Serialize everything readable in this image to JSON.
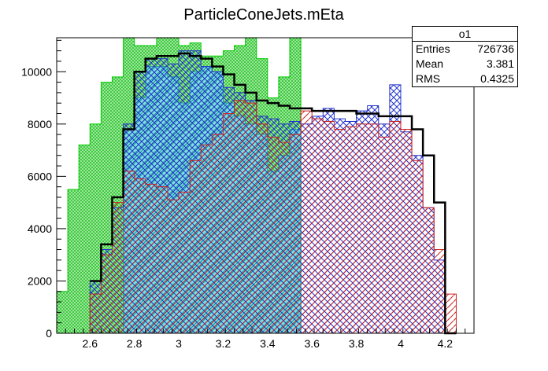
{
  "chart_data": {
    "type": "histogram",
    "title": "ParticleConeJets.mEta",
    "xlabel": "",
    "ylabel": "",
    "xlim": [
      2.45,
      4.33
    ],
    "ylim": [
      0,
      11300
    ],
    "x_ticks": [
      "2.6",
      "2.8",
      "3",
      "3.2",
      "3.4",
      "3.6",
      "3.8",
      "4",
      "4.2"
    ],
    "y_ticks": [
      "0",
      "2000",
      "4000",
      "6000",
      "8000",
      "10000"
    ],
    "grid": false,
    "legend": "none",
    "stats_box": {
      "name": "o1",
      "rows": [
        {
          "label": "Entries",
          "value": "726736"
        },
        {
          "label": "Mean",
          "value": "3.381"
        },
        {
          "label": "RMS",
          "value": "0.4325"
        }
      ]
    },
    "series": [
      {
        "style": "green fill",
        "color": "#00cc00",
        "x": [
          2.45,
          2.5,
          2.55,
          2.6,
          2.65,
          2.7,
          2.75,
          2.8,
          2.85,
          2.9,
          2.95,
          3.0,
          3.05,
          3.1,
          3.15,
          3.2,
          3.25,
          3.3,
          3.35,
          3.4,
          3.45,
          3.5,
          3.55
        ],
        "values": [
          1600,
          5500,
          7200,
          8000,
          9600,
          9800,
          11300,
          11000,
          11000,
          11300,
          11300,
          11000,
          11100,
          10600,
          10600,
          10800,
          11000,
          11300,
          10500,
          9000,
          9800,
          11300,
          0
        ]
      },
      {
        "style": "cyan fill",
        "color": "#2ec4c4",
        "x": [
          2.75,
          2.8,
          2.85,
          2.9,
          2.95,
          3.0,
          3.05,
          3.1,
          3.15,
          3.2,
          3.25,
          3.3,
          3.35,
          3.4,
          3.45,
          3.5
        ],
        "values": [
          7800,
          9000,
          10200,
          10200,
          9800,
          8800,
          10000,
          10200,
          10000,
          8800,
          8300,
          8000,
          7600,
          6200,
          6800,
          7800
        ]
      },
      {
        "style": "blue hatch",
        "color": "#2233cc",
        "x": [
          2.6,
          2.65,
          2.7,
          2.75,
          2.8,
          2.85,
          2.9,
          2.95,
          3.0,
          3.05,
          3.1,
          3.15,
          3.2,
          3.25,
          3.3,
          3.35,
          3.4,
          3.45,
          3.5,
          3.55,
          3.6,
          3.65,
          3.7,
          3.75,
          3.8,
          3.85,
          3.9,
          3.95,
          4.0,
          4.05,
          4.1,
          4.15,
          4.2
        ],
        "values": [
          2000,
          3200,
          4800,
          8000,
          10000,
          10500,
          10500,
          10300,
          10800,
          10800,
          10200,
          10000,
          9400,
          9200,
          8900,
          8300,
          8200,
          8000,
          8100,
          8000,
          8300,
          8600,
          8200,
          8100,
          8500,
          8700,
          8000,
          9500,
          7700,
          6800,
          4800,
          2800,
          0
        ]
      },
      {
        "style": "red hatch",
        "color": "#cc2222",
        "x": [
          2.6,
          2.65,
          2.7,
          2.75,
          2.8,
          2.85,
          2.9,
          2.95,
          3.0,
          3.05,
          3.1,
          3.15,
          3.2,
          3.25,
          3.3,
          3.35,
          3.4,
          3.45,
          3.5,
          3.55,
          3.6,
          3.65,
          3.7,
          3.75,
          3.8,
          3.85,
          3.9,
          3.95,
          4.0,
          4.05,
          4.1,
          4.15,
          4.2,
          4.25
        ],
        "values": [
          1500,
          3000,
          5000,
          6200,
          5900,
          5700,
          5600,
          5100,
          5400,
          6600,
          7200,
          7600,
          8400,
          8900,
          8800,
          8000,
          7500,
          7300,
          7600,
          8500,
          8200,
          8100,
          7800,
          7900,
          8000,
          8000,
          7500,
          8100,
          7800,
          6600,
          4800,
          3200,
          1500,
          0
        ]
      },
      {
        "style": "black line",
        "color": "#000000",
        "x": [
          2.6,
          2.65,
          2.7,
          2.75,
          2.8,
          2.85,
          2.9,
          2.95,
          3.0,
          3.05,
          3.1,
          3.15,
          3.2,
          3.25,
          3.3,
          3.35,
          3.4,
          3.45,
          3.5,
          3.55,
          3.6,
          3.65,
          3.7,
          3.75,
          3.8,
          3.85,
          3.9,
          3.95,
          4.0,
          4.05,
          4.1,
          4.15,
          4.2
        ],
        "values": [
          2000,
          3400,
          5200,
          7800,
          10000,
          10500,
          10600,
          10600,
          10700,
          10600,
          10500,
          10200,
          9900,
          9500,
          9200,
          8900,
          8800,
          8700,
          8600,
          8600,
          8500,
          8500,
          8500,
          8500,
          8400,
          8400,
          8300,
          8300,
          8300,
          7800,
          6800,
          5000,
          0
        ]
      }
    ]
  }
}
